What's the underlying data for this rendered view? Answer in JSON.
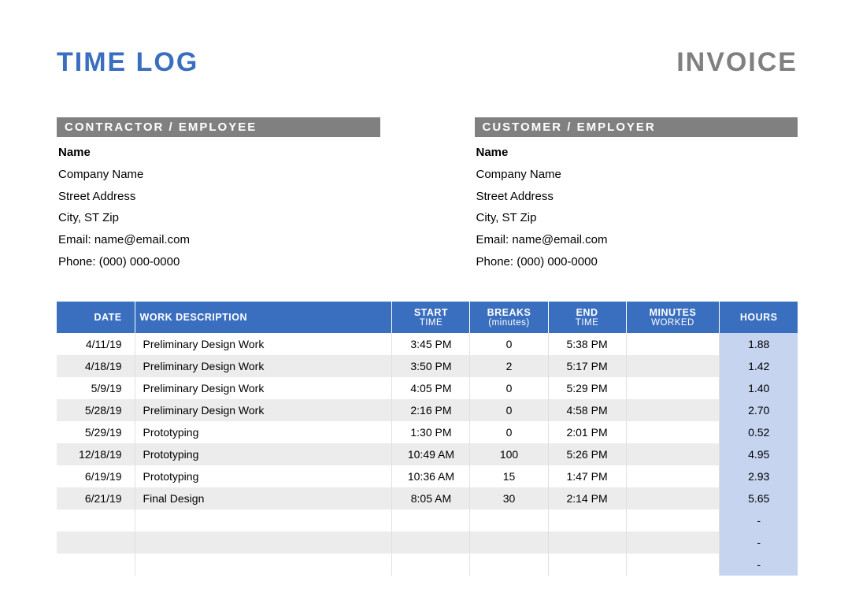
{
  "header": {
    "title_left": "TIME LOG",
    "title_right": "INVOICE",
    "title_left_color": "#3a6fbf",
    "title_right_color": "#808080"
  },
  "contractor": {
    "header": "CONTRACTOR / EMPLOYEE",
    "name": "Name",
    "company": "Company Name",
    "street": "Street Address",
    "city": "City, ST Zip",
    "email": "Email: name@email.com",
    "phone": "Phone: (000) 000-0000"
  },
  "customer": {
    "header": "CUSTOMER / EMPLOYER",
    "name": "Name",
    "company": "Company Name",
    "street": "Street Address",
    "city": "City, ST Zip",
    "email": "Email: name@email.com",
    "phone": "Phone: (000) 000-0000"
  },
  "table": {
    "header_bg": "#3a6fbf",
    "header_fg": "#ffffff",
    "row_odd_bg": "#ffffff",
    "row_even_bg": "#ececec",
    "hours_col_bg": "#c6d4ef",
    "columns": {
      "date": "DATE",
      "desc": "WORK DESCRIPTION",
      "start": "START",
      "start_sub": "TIME",
      "breaks": "BREAKS",
      "breaks_sub": "(minutes)",
      "end": "END",
      "end_sub": "TIME",
      "minutes": "MINUTES",
      "minutes_sub": "WORKED",
      "hours": "HOURS"
    },
    "rows": [
      {
        "date": "4/11/19",
        "desc": "Preliminary Design Work",
        "start": "3:45 PM",
        "breaks": "0",
        "end": "5:38 PM",
        "minutes": "",
        "hours": "1.88"
      },
      {
        "date": "4/18/19",
        "desc": "Preliminary Design Work",
        "start": "3:50 PM",
        "breaks": "2",
        "end": "5:17 PM",
        "minutes": "",
        "hours": "1.42"
      },
      {
        "date": "5/9/19",
        "desc": "Preliminary Design Work",
        "start": "4:05 PM",
        "breaks": "0",
        "end": "5:29 PM",
        "minutes": "",
        "hours": "1.40"
      },
      {
        "date": "5/28/19",
        "desc": "Preliminary Design Work",
        "start": "2:16 PM",
        "breaks": "0",
        "end": "4:58 PM",
        "minutes": "",
        "hours": "2.70"
      },
      {
        "date": "5/29/19",
        "desc": "Prototyping",
        "start": "1:30 PM",
        "breaks": "0",
        "end": "2:01 PM",
        "minutes": "",
        "hours": "0.52"
      },
      {
        "date": "12/18/19",
        "desc": "Prototyping",
        "start": "10:49 AM",
        "breaks": "100",
        "end": "5:26 PM",
        "minutes": "",
        "hours": "4.95"
      },
      {
        "date": "6/19/19",
        "desc": "Prototyping",
        "start": "10:36 AM",
        "breaks": "15",
        "end": "1:47 PM",
        "minutes": "",
        "hours": "2.93"
      },
      {
        "date": "6/21/19",
        "desc": "Final Design",
        "start": "8:05 AM",
        "breaks": "30",
        "end": "2:14 PM",
        "minutes": "",
        "hours": "5.65"
      },
      {
        "date": "",
        "desc": "",
        "start": "",
        "breaks": "",
        "end": "",
        "minutes": "",
        "hours": "-"
      },
      {
        "date": "",
        "desc": "",
        "start": "",
        "breaks": "",
        "end": "",
        "minutes": "",
        "hours": "-"
      },
      {
        "date": "",
        "desc": "",
        "start": "",
        "breaks": "",
        "end": "",
        "minutes": "",
        "hours": "-"
      }
    ]
  }
}
